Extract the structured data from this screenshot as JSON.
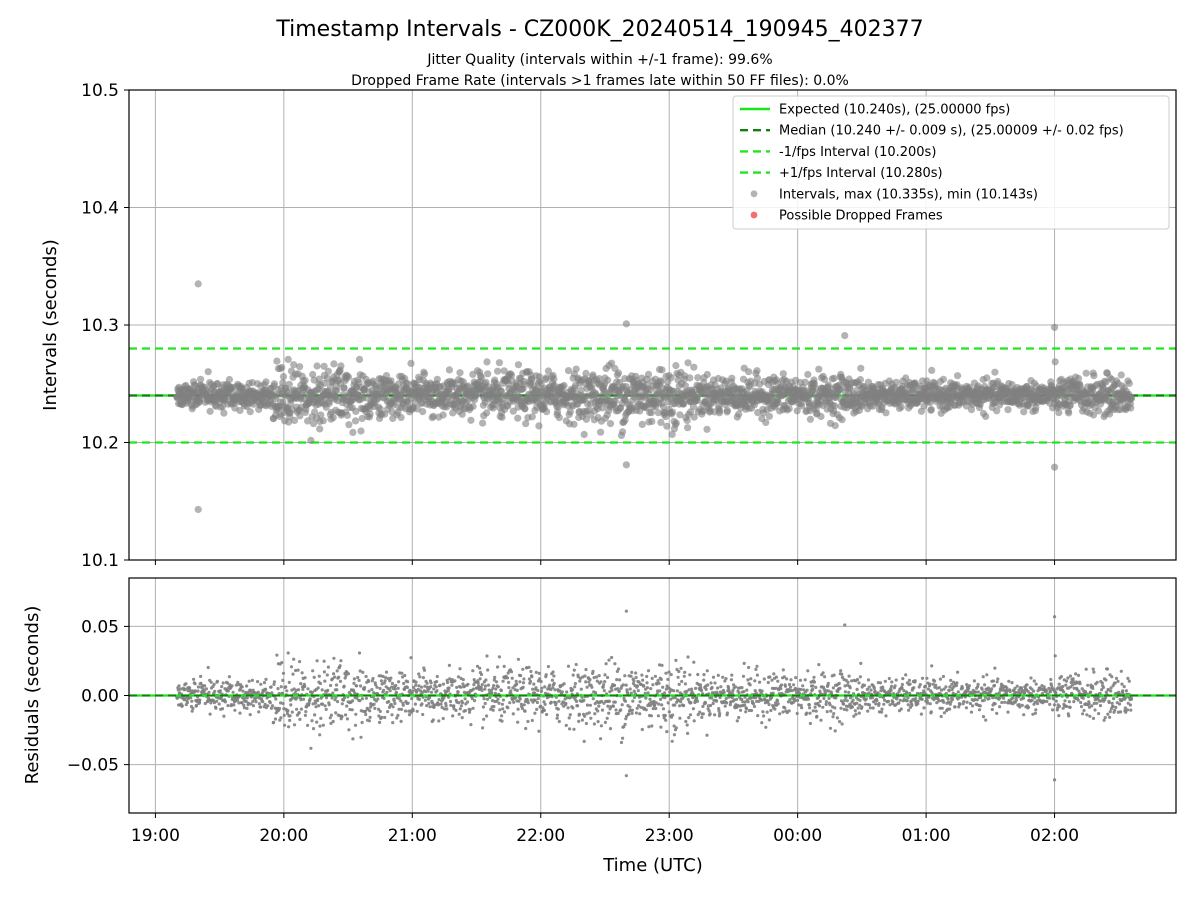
{
  "title": "Timestamp Intervals - CZ000K_20240514_190945_402377",
  "subtitle1": "Jitter Quality (intervals within +/-1 frame): 99.6%",
  "subtitle2": "Dropped Frame Rate (intervals >1 frames late within 50 FF files): 0.0%",
  "colors": {
    "expected": "#19e619",
    "median": "#137f13",
    "fps_band": "#1fe61f",
    "points": "#808080",
    "dropped": "#f26060",
    "grid": "#b0b0b0"
  },
  "chart_data": [
    {
      "type": "scatter",
      "xlabel": "",
      "ylabel": "Intervals (seconds)",
      "x_ticks": [
        "19:00",
        "20:00",
        "21:00",
        "22:00",
        "23:00",
        "00:00",
        "01:00",
        "02:00"
      ],
      "ylim": [
        10.1,
        10.5
      ],
      "y_ticks": [
        "10.1",
        "10.2",
        "10.3",
        "10.4",
        "10.5"
      ],
      "grid": true,
      "legend_position": "top-right",
      "legend": [
        {
          "label": "Expected (10.240s), (25.00000 fps)",
          "kind": "line-solid"
        },
        {
          "label": "Median (10.240 +/- 0.009 s), (25.00009 +/- 0.02 fps)",
          "kind": "line-dashed-dark"
        },
        {
          "label": "-1/fps Interval (10.200s)",
          "kind": "line-dashed"
        },
        {
          "label": "+1/fps Interval (10.280s)",
          "kind": "line-dashed"
        },
        {
          "label": "Intervals, max (10.335s), min (10.143s)",
          "kind": "dot-gray"
        },
        {
          "label": "Possible Dropped Frames",
          "kind": "dot-red"
        }
      ],
      "reference_lines": {
        "expected": 10.24,
        "median": 10.24,
        "minus_1fps": 10.2,
        "plus_1fps": 10.28
      },
      "time_range": [
        "19:10",
        "02:36"
      ],
      "sampling": "approximately 2600 intervals, one per 10.24 s",
      "outliers": [
        {
          "time": "19:20",
          "value": 10.335
        },
        {
          "time": "19:20",
          "value": 10.143
        },
        {
          "time": "22:40",
          "value": 10.301
        },
        {
          "time": "22:40",
          "value": 10.181
        },
        {
          "time": "00:22",
          "value": 10.291
        },
        {
          "time": "02:00",
          "value": 10.298
        },
        {
          "time": "02:00",
          "value": 10.179
        }
      ],
      "dropped_frames": []
    },
    {
      "type": "scatter",
      "xlabel": "Time (UTC)",
      "ylabel": "Residuals (seconds)",
      "x_ticks": [
        "19:00",
        "20:00",
        "21:00",
        "22:00",
        "23:00",
        "00:00",
        "01:00",
        "02:00"
      ],
      "ylim": [
        -0.085,
        0.085
      ],
      "y_ticks": [
        "−0.05",
        "0.00",
        "0.05"
      ],
      "grid": true,
      "reference_lines": {
        "zero": 0.0
      },
      "outliers": [
        {
          "time": "22:40",
          "value": 0.061
        },
        {
          "time": "22:40",
          "value": -0.058
        },
        {
          "time": "00:22",
          "value": 0.051
        },
        {
          "time": "02:00",
          "value": 0.057
        },
        {
          "time": "02:00",
          "value": -0.061
        }
      ]
    }
  ]
}
